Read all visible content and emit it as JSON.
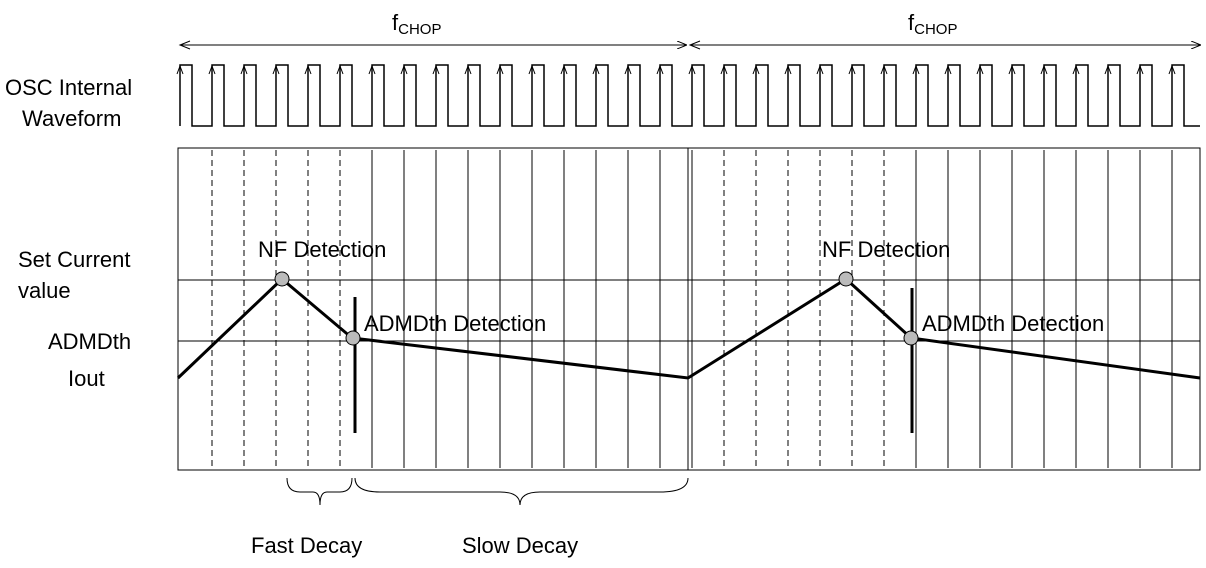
{
  "period_labels": [
    {
      "main": "f",
      "sub": "CHOP"
    },
    {
      "main": "f",
      "sub": "CHOP"
    }
  ],
  "osc_label": [
    "OSC Internal",
    "Waveform"
  ],
  "set_current_label": [
    "Set Current",
    "value"
  ],
  "admdth_label": "ADMDth",
  "iout_label": "Iout",
  "nf_detection": [
    "NF Detection",
    "NF Detection"
  ],
  "admdth_detection": [
    "ADMDth Detection",
    "ADMDth Detection"
  ],
  "fast_decay": "Fast Decay",
  "slow_decay": "Slow Decay"
}
